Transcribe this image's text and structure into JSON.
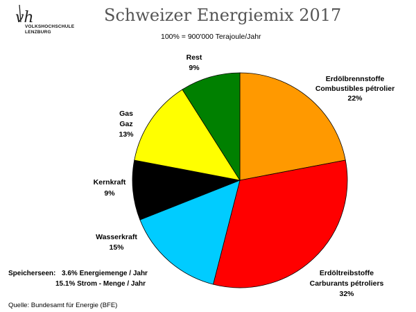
{
  "logo": {
    "mark": "vhl",
    "line1": "VOLKSHOCHSCHULE",
    "line2": "LENZBURG"
  },
  "header": {
    "title": "Schweizer Energiemix 2017",
    "subtitle": "100% =  900'000 Terajoule/Jahr"
  },
  "chart_data": {
    "type": "pie",
    "title": "Schweizer Energiemix 2017",
    "subtitle": "100% =  900'000 Terajoule/Jahr",
    "slices": [
      {
        "name": "Erdölbrennstoffe",
        "name2": "Combustibles pétrolier",
        "value": 22,
        "label": "22%",
        "color": "#FF9900"
      },
      {
        "name": "Erdöltreibstoffe",
        "name2": "Carburants pétroliers",
        "value": 32,
        "label": "32%",
        "color": "#FF0000"
      },
      {
        "name": "Wasserkraft",
        "name2": "",
        "value": 15,
        "label": "15%",
        "color": "#00CCFF"
      },
      {
        "name": "Kernkraft",
        "name2": "",
        "value": 9,
        "label": "9%",
        "color": "#000000"
      },
      {
        "name": "Gas",
        "name2": "Gaz",
        "value": 13,
        "label": "13%",
        "color": "#FFFF00"
      },
      {
        "name": "Rest",
        "name2": "",
        "value": 9,
        "label": "9%",
        "color": "#008000"
      }
    ]
  },
  "notes": {
    "speicherseen_label": "Speicherseen:",
    "line1": "3.6% Energiemenge / Jahr",
    "line2": "15.1% Strom - Menge / Jahr"
  },
  "source": "Quelle: Bundesamt für Energie (BFE)"
}
